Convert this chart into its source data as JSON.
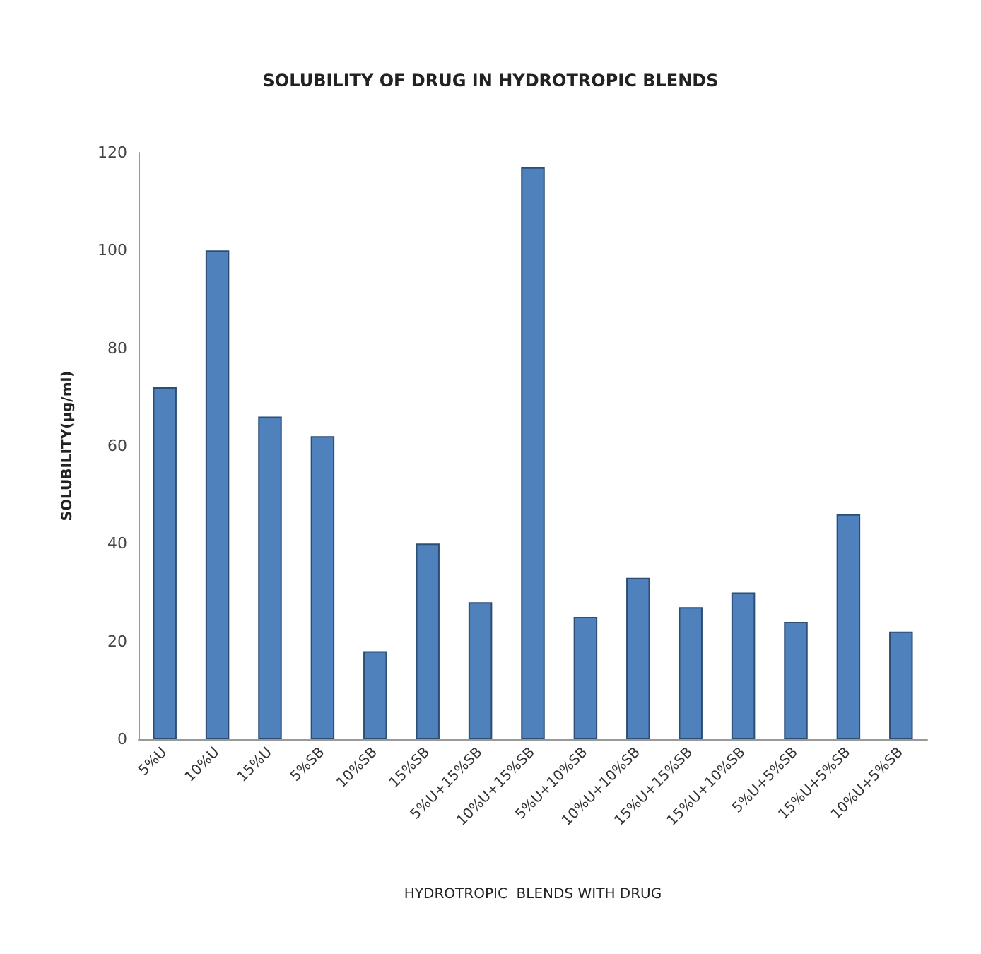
{
  "chart_data": {
    "type": "bar",
    "title": "SOLUBILITY OF DRUG IN HYDROTROPIC BLENDS",
    "xlabel": "HYDROTROPIC  BLENDS WITH DRUG",
    "ylabel": "SOLUBILITY(µg/ml)",
    "categories": [
      "5%U",
      "10%U",
      "15%U",
      "5%SB",
      "10%SB",
      "15%SB",
      "5%U+15%SB",
      "10%U+15%SB",
      "5%U+10%SB",
      "10%U+10%SB",
      "15%U+15%SB",
      "15%U+10%SB",
      "5%U+5%SB",
      "15%U+5%SB",
      "10%U+5%SB"
    ],
    "values": [
      72,
      100,
      66,
      62,
      18,
      40,
      28,
      117,
      25,
      33,
      27,
      30,
      24,
      46,
      22
    ],
    "color": "#4f81bd",
    "ylim": [
      0,
      120
    ],
    "yticks": [
      0,
      20,
      40,
      60,
      80,
      100,
      120
    ],
    "grid": false
  }
}
